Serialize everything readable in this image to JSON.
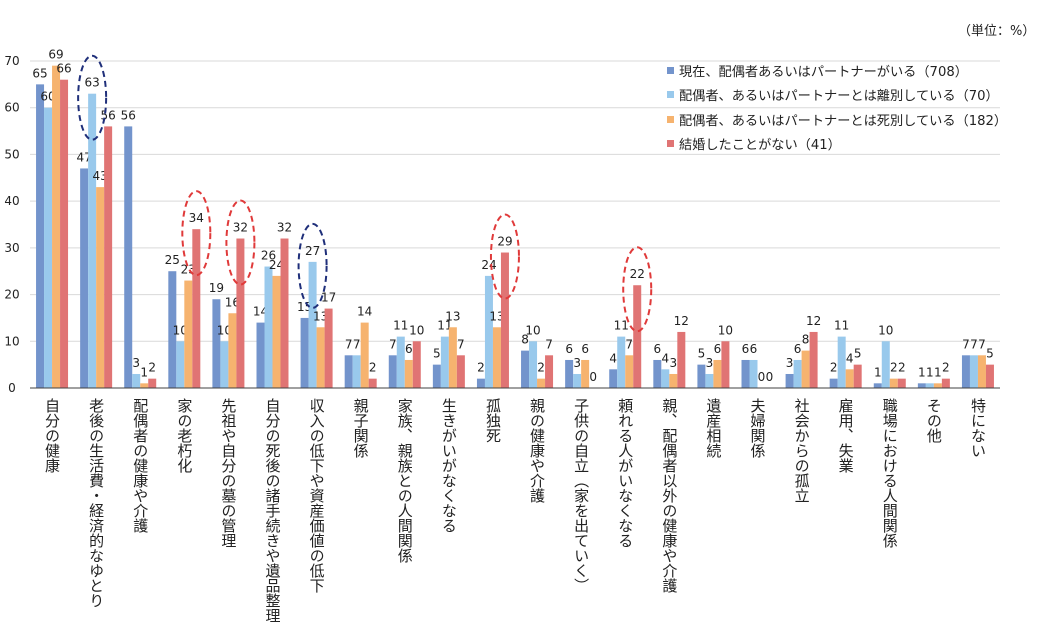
{
  "unit_label": "（単位：%）",
  "colors": {
    "series": [
      "#7394CC",
      "#99C9EC",
      "#F6B36F",
      "#E07474"
    ],
    "grid": "#D9D9D9",
    "axis": "#404040",
    "highlight_blue": "#1F2F7A",
    "highlight_red": "#E03A3A"
  },
  "chart_data": {
    "type": "bar",
    "ylim": [
      0,
      70
    ],
    "yticks": [
      0,
      10,
      20,
      30,
      40,
      50,
      60,
      70
    ],
    "grid": true,
    "legend_position": "top-right",
    "categories": [
      "自分の健康",
      "老後の生活費・経済的なゆとり",
      "配偶者の健康や介護",
      "家の老朽化",
      "先祖や自分の墓の管理",
      "自分の死後の諸手続きや遺品整理",
      "収入の低下や資産価値の低下",
      "親子関係",
      "家族、親族との人間関係",
      "生きがいがなくなる",
      "孤独死",
      "親の健康や介護",
      "子供の自立（家を出ていく）",
      "頼れる人がいなくなる",
      "親、配偶者以外の健康や介護",
      "遺産相続",
      "夫婦関係",
      "社会からの孤立",
      "雇用、失業",
      "職場における人間関係",
      "その他",
      "特にない"
    ],
    "series": [
      {
        "name": "現在、配偶者あるいはパートナーがいる（708）",
        "values": [
          65,
          47,
          56,
          25,
          19,
          14,
          15,
          7,
          7,
          5,
          2,
          8,
          6,
          4,
          6,
          5,
          6,
          3,
          2,
          1,
          1,
          7
        ]
      },
      {
        "name": "配偶者、あるいはパートナーとは離別している（70）",
        "values": [
          60,
          63,
          3,
          10,
          10,
          26,
          27,
          7,
          11,
          11,
          24,
          10,
          3,
          11,
          4,
          3,
          6,
          6,
          11,
          10,
          1,
          7
        ]
      },
      {
        "name": "配偶者、あるいはパートナーとは死別している（182）",
        "values": [
          69,
          43,
          1,
          23,
          16,
          24,
          13,
          14,
          6,
          13,
          13,
          2,
          6,
          7,
          3,
          6,
          0,
          8,
          4,
          2,
          1,
          7
        ]
      },
      {
        "name": "結婚したことがない（41）",
        "values": [
          66,
          56,
          2,
          34,
          32,
          32,
          17,
          2,
          10,
          7,
          29,
          7,
          0,
          22,
          12,
          10,
          0,
          12,
          5,
          2,
          2,
          5
        ]
      }
    ],
    "highlights": [
      {
        "category": 1,
        "series": 1,
        "color": "blue"
      },
      {
        "category": 3,
        "series": 3,
        "color": "red"
      },
      {
        "category": 4,
        "series": 3,
        "color": "red"
      },
      {
        "category": 6,
        "series": 1,
        "color": "blue"
      },
      {
        "category": 10,
        "series": 3,
        "color": "red"
      },
      {
        "category": 13,
        "series": 3,
        "color": "red"
      }
    ]
  }
}
